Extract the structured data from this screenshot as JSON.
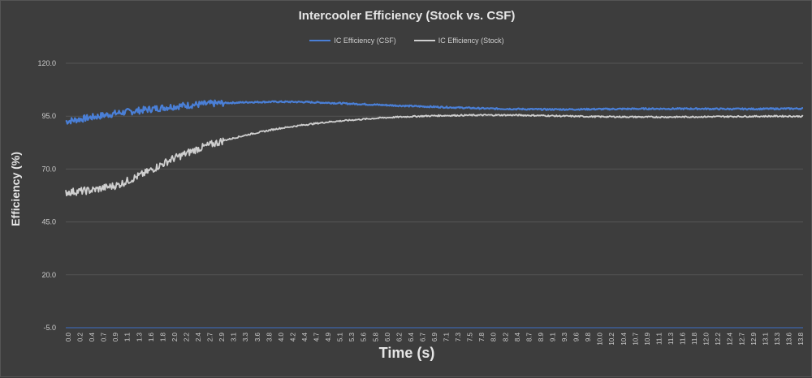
{
  "chart_data": {
    "type": "line",
    "title": "Intercooler Efficiency (Stock vs. CSF)",
    "xlabel": "Time (s)",
    "ylabel": "Efficiency (%)",
    "ylim": [
      -5,
      120
    ],
    "yticks": [
      "120.0",
      "95.0",
      "70.0",
      "45.0",
      "20.0",
      "-5.0"
    ],
    "ytick_values": [
      120,
      95,
      70,
      45,
      20,
      -5
    ],
    "xlim": [
      0,
      14.0
    ],
    "xticks": [
      "0.0",
      "0.2",
      "0.4",
      "0.7",
      "0.9",
      "1.1",
      "1.3",
      "1.6",
      "1.8",
      "2.0",
      "2.2",
      "2.4",
      "2.7",
      "2.9",
      "3.1",
      "3.3",
      "3.6",
      "3.8",
      "4.0",
      "4.2",
      "4.4",
      "4.7",
      "4.9",
      "5.1",
      "5.3",
      "5.6",
      "5.8",
      "6.0",
      "6.2",
      "6.4",
      "6.7",
      "6.9",
      "7.1",
      "7.3",
      "7.5",
      "7.8",
      "8.0",
      "8.2",
      "8.4",
      "8.7",
      "8.9",
      "9.1",
      "9.3",
      "9.6",
      "9.8",
      "10.0",
      "10.2",
      "10.4",
      "10.7",
      "10.9",
      "11.1",
      "11.3",
      "11.6",
      "11.8",
      "12.0",
      "12.2",
      "12.4",
      "12.7",
      "12.9",
      "13.1",
      "13.3",
      "13.6",
      "13.8"
    ],
    "grid": true,
    "legend_position": "top",
    "series": [
      {
        "name": "IC Efficiency (CSF)",
        "color": "#4a7fd6",
        "x": [
          0,
          0.5,
          1.0,
          1.5,
          2.0,
          2.5,
          3.0,
          3.5,
          4.0,
          4.5,
          5.0,
          5.5,
          6.0,
          6.5,
          7.0,
          7.5,
          8.0,
          8.5,
          9.0,
          9.5,
          10.0,
          10.5,
          11.0,
          11.5,
          12.0,
          12.5,
          13.0,
          13.5,
          14.0
        ],
        "values": [
          92.5,
          94.5,
          96.5,
          98.0,
          99.5,
          100.5,
          101.2,
          101.6,
          101.8,
          101.7,
          101.3,
          100.8,
          100.3,
          99.8,
          99.4,
          99.0,
          98.6,
          98.4,
          98.2,
          98.2,
          98.3,
          98.4,
          98.5,
          98.5,
          98.5,
          98.4,
          98.4,
          98.5,
          98.6
        ]
      },
      {
        "name": "IC Efficiency (Stock)",
        "color": "#cfcfcf",
        "x": [
          0,
          0.5,
          1.0,
          1.5,
          2.0,
          2.5,
          3.0,
          3.5,
          4.0,
          4.5,
          5.0,
          5.5,
          6.0,
          6.5,
          7.0,
          7.5,
          8.0,
          8.5,
          9.0,
          9.5,
          10.0,
          10.5,
          11.0,
          11.5,
          12.0,
          12.5,
          13.0,
          13.5,
          14.0
        ],
        "values": [
          59.0,
          60.0,
          62.5,
          68.0,
          74.5,
          79.5,
          83.5,
          86.5,
          89.0,
          90.8,
          92.3,
          93.3,
          94.2,
          94.8,
          95.2,
          95.4,
          95.5,
          95.5,
          95.3,
          95.0,
          94.8,
          94.7,
          94.6,
          94.6,
          94.7,
          94.8,
          94.9,
          95.0,
          94.9
        ]
      }
    ]
  }
}
